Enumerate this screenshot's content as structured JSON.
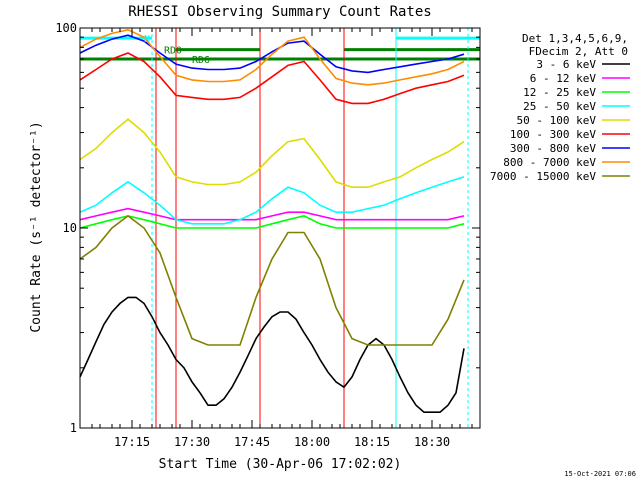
{
  "chart_data": {
    "type": "line",
    "title": "RHESSI Observing Summary Count Rates",
    "xlabel": "Start Time (30-Apr-06 17:02:02)",
    "ylabel": "Count Rate (s⁻¹ detector⁻¹)",
    "yscale": "log",
    "ylim": [
      1,
      100
    ],
    "y_ticks": [
      {
        "value": 1,
        "label": "1"
      },
      {
        "value": 10,
        "label": "10"
      },
      {
        "value": 100,
        "label": "100"
      }
    ],
    "xlim_minutes": [
      0,
      100
    ],
    "x_ticks": [
      {
        "value": 13,
        "label": "17:15"
      },
      {
        "value": 28,
        "label": "17:30"
      },
      {
        "value": 43,
        "label": "17:45"
      },
      {
        "value": 58,
        "label": "18:00"
      },
      {
        "value": 73,
        "label": "18:15"
      },
      {
        "value": 88,
        "label": "18:30"
      }
    ],
    "legend_header": [
      "Det 1,3,4,5,6,9,",
      "FDecim 2, Att 0"
    ],
    "legend_position": "right",
    "series": [
      {
        "name": "3 - 6 keV",
        "color": "#000000",
        "x": [
          0,
          2,
          4,
          6,
          8,
          10,
          12,
          14,
          16,
          18,
          20,
          22,
          24,
          26,
          28,
          30,
          32,
          34,
          36,
          38,
          40,
          42,
          44,
          46,
          48,
          50,
          52,
          54,
          56,
          58,
          60,
          62,
          64,
          66,
          68,
          70,
          72,
          74,
          76,
          78,
          80,
          82,
          84,
          86,
          88,
          90,
          92,
          94,
          96
        ],
        "y": [
          1.8,
          2.2,
          2.7,
          3.3,
          3.8,
          4.2,
          4.5,
          4.5,
          4.2,
          3.6,
          3.0,
          2.6,
          2.2,
          2.0,
          1.7,
          1.5,
          1.3,
          1.3,
          1.4,
          1.6,
          1.9,
          2.3,
          2.8,
          3.2,
          3.6,
          3.8,
          3.8,
          3.5,
          3.0,
          2.6,
          2.2,
          1.9,
          1.7,
          1.6,
          1.8,
          2.2,
          2.6,
          2.8,
          2.6,
          2.2,
          1.8,
          1.5,
          1.3,
          1.2,
          1.2,
          1.2,
          1.3,
          1.5,
          2.5
        ]
      },
      {
        "name": "6 - 12 keV",
        "color": "#ff00ff",
        "x": [
          0,
          4,
          8,
          12,
          16,
          20,
          24,
          28,
          32,
          36,
          40,
          44,
          48,
          52,
          56,
          60,
          64,
          68,
          72,
          76,
          80,
          84,
          88,
          92,
          96
        ],
        "y": [
          11,
          11.5,
          12,
          12.5,
          12,
          11.5,
          11,
          11,
          11,
          11,
          11,
          11,
          11.5,
          12,
          12,
          11.5,
          11,
          11,
          11,
          11,
          11,
          11,
          11,
          11,
          11.5
        ]
      },
      {
        "name": "12 - 25 keV",
        "color": "#00ff00",
        "x": [
          0,
          4,
          8,
          12,
          16,
          20,
          24,
          28,
          32,
          36,
          40,
          44,
          48,
          52,
          56,
          60,
          64,
          68,
          72,
          76,
          80,
          84,
          88,
          92,
          96
        ],
        "y": [
          10,
          10.5,
          11,
          11.5,
          11,
          10.5,
          10,
          10,
          10,
          10,
          10,
          10,
          10.5,
          11,
          11.5,
          10.5,
          10,
          10,
          10,
          10,
          10,
          10,
          10,
          10,
          10.5
        ]
      },
      {
        "name": "25 - 50 keV",
        "color": "#00ffff",
        "x": [
          0,
          4,
          8,
          12,
          16,
          20,
          24,
          28,
          32,
          36,
          40,
          44,
          48,
          52,
          56,
          60,
          64,
          68,
          72,
          76,
          80,
          84,
          88,
          92,
          96
        ],
        "y": [
          12,
          13,
          15,
          17,
          15,
          13,
          11,
          10.5,
          10.5,
          10.5,
          11,
          12,
          14,
          16,
          15,
          13,
          12,
          12,
          12.5,
          13,
          14,
          15,
          16,
          17,
          18
        ]
      },
      {
        "name": "50 - 100 keV",
        "color": "#dddd00",
        "x": [
          0,
          4,
          8,
          12,
          16,
          20,
          24,
          28,
          32,
          36,
          40,
          44,
          48,
          52,
          56,
          60,
          64,
          68,
          72,
          76,
          80,
          84,
          88,
          92,
          96
        ],
        "y": [
          22,
          25,
          30,
          35,
          30,
          24,
          18,
          17,
          16.5,
          16.5,
          17,
          19,
          23,
          27,
          28,
          22,
          17,
          16,
          16,
          17,
          18,
          20,
          22,
          24,
          27
        ]
      },
      {
        "name": "100 - 300 keV",
        "color": "#ff0000",
        "x": [
          0,
          4,
          8,
          12,
          16,
          20,
          24,
          28,
          32,
          36,
          40,
          44,
          48,
          52,
          56,
          60,
          64,
          68,
          72,
          76,
          80,
          84,
          88,
          92,
          96
        ],
        "y": [
          55,
          62,
          70,
          75,
          68,
          57,
          46,
          45,
          44,
          44,
          45,
          50,
          57,
          65,
          68,
          55,
          44,
          42,
          42,
          44,
          47,
          50,
          52,
          54,
          58
        ]
      },
      {
        "name": "300 - 800 keV",
        "color": "#0000ff",
        "x": [
          0,
          4,
          8,
          12,
          16,
          20,
          24,
          28,
          32,
          36,
          40,
          44,
          48,
          52,
          56,
          60,
          64,
          68,
          72,
          76,
          80,
          84,
          88,
          92,
          96
        ],
        "y": [
          75,
          82,
          88,
          92,
          86,
          75,
          66,
          63,
          62,
          62,
          63,
          68,
          76,
          84,
          86,
          74,
          64,
          61,
          60,
          62,
          64,
          66,
          68,
          70,
          74
        ]
      },
      {
        "name": "800 - 7000 keV",
        "color": "#ff8c00",
        "x": [
          0,
          4,
          8,
          12,
          16,
          20,
          24,
          28,
          32,
          36,
          40,
          44,
          48,
          52,
          56,
          60,
          64,
          68,
          72,
          76,
          80,
          84,
          88,
          92,
          96
        ],
        "y": [
          80,
          88,
          94,
          98,
          90,
          72,
          58,
          55,
          54,
          54,
          55,
          62,
          74,
          86,
          90,
          70,
          56,
          53,
          52,
          53,
          55,
          57,
          59,
          62,
          68
        ]
      },
      {
        "name": "7000 - 15000 keV",
        "color": "#808000",
        "x": [
          0,
          4,
          8,
          12,
          16,
          20,
          24,
          28,
          32,
          36,
          40,
          44,
          48,
          52,
          56,
          60,
          64,
          68,
          72,
          76,
          80,
          84,
          88,
          92,
          96
        ],
        "y": [
          7,
          8,
          10,
          11.5,
          10,
          7.5,
          4.5,
          2.8,
          2.6,
          2.6,
          2.6,
          4.5,
          7,
          9.5,
          9.5,
          7,
          4,
          2.8,
          2.6,
          2.6,
          2.6,
          2.6,
          2.6,
          3.5,
          5.5
        ]
      }
    ],
    "annotations": [
      {
        "label": "N",
        "color": "#00ffff",
        "x": 16,
        "y": 89
      },
      {
        "label": "RD0",
        "color": "#008000",
        "x": 21,
        "y": 78
      },
      {
        "label": "RD6",
        "color": "#008000",
        "x": 28,
        "y": 70
      }
    ],
    "footer": "15-Oct-2021 07:06"
  }
}
